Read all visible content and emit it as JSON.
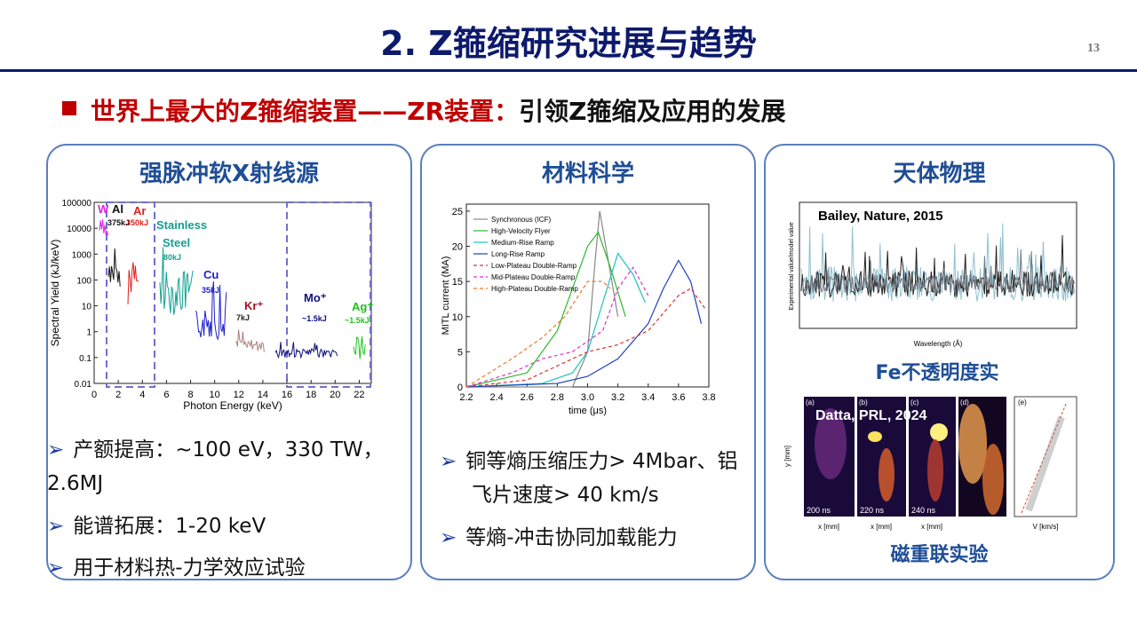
{
  "header": {
    "title": "2. Z箍缩研究进展与趋势",
    "page": "13"
  },
  "subtitle": {
    "red": "世界上最大的Z箍缩装置——ZR装置：",
    "black": "引领Z箍缩及应用的发展"
  },
  "panels": [
    {
      "title": "强脉冲软X射线源",
      "figure": {
        "ylabel": "Spectral Yield (kJ/keV)",
        "xlabel": "Photon Energy (keV)",
        "log": true,
        "xlim": [
          0,
          23
        ],
        "xticks": [
          0,
          2,
          4,
          6,
          8,
          10,
          12,
          14,
          16,
          18,
          20,
          22
        ],
        "ylim": [
          0.01,
          100000
        ],
        "yticks": [
          100000,
          10000,
          1000,
          100,
          10,
          1,
          0.1,
          0.01
        ],
        "annotations": [
          "W",
          "Al",
          "375kJ",
          "Ar",
          "350kJ",
          "Stainless",
          "Steel",
          "80kJ",
          "Cu",
          "35kJ",
          "Kr⁺",
          "7kJ",
          "Mo⁺",
          "~1.5kJ",
          "Ag⁺",
          "~1.5kJ"
        ]
      },
      "bullets": [
        "产额提高：~100 eV，330 TW，2.6MJ",
        "能谱拓展：1-20 keV",
        "用于材料热-力学效应试验"
      ]
    },
    {
      "title": "材料科学",
      "figure": {
        "type": "line",
        "xlabel": "time (μs)",
        "ylabel": "MITL current (MA)",
        "xlim": [
          2.2,
          3.8
        ],
        "xticks": [
          2.2,
          2.4,
          2.6,
          2.8,
          3.0,
          3.2,
          3.4,
          3.6,
          3.8
        ],
        "ylim": [
          0,
          26
        ],
        "yticks": [
          0,
          5,
          10,
          15,
          20,
          25
        ],
        "series": [
          {
            "name": "Synchronous (ICF)",
            "color": "#888888",
            "dash": false,
            "x": [
              2.2,
              2.9,
              3.0,
              3.05,
              3.08,
              3.12,
              3.2
            ],
            "values": [
              0,
              0,
              5,
              18,
              25,
              20,
              10
            ]
          },
          {
            "name": "High-Velocity Flyer",
            "color": "#2db82d",
            "dash": false,
            "x": [
              2.2,
              2.6,
              2.8,
              2.9,
              3.0,
              3.07,
              3.15,
              3.25
            ],
            "values": [
              0,
              2,
              8,
              14,
              20,
              22,
              17,
              10
            ]
          },
          {
            "name": "Medium-Rise Ramp",
            "color": "#20c0c0",
            "dash": false,
            "x": [
              2.2,
              2.7,
              2.9,
              3.0,
              3.1,
              3.2,
              3.3,
              3.38
            ],
            "values": [
              0,
              0.5,
              2,
              5,
              12,
              19,
              16,
              12
            ]
          },
          {
            "name": "Long-Rise Ramp",
            "color": "#2040c0",
            "dash": false,
            "x": [
              2.2,
              2.8,
              3.0,
              3.2,
              3.4,
              3.5,
              3.6,
              3.68,
              3.75
            ],
            "values": [
              0,
              0.5,
              1.5,
              4,
              9,
              14,
              18,
              15,
              9
            ]
          },
          {
            "name": "Low-Plateau Double-Ramp",
            "color": "#e03030",
            "dash": true,
            "x": [
              2.2,
              2.6,
              2.8,
              3.0,
              3.2,
              3.4,
              3.6,
              3.68,
              3.78
            ],
            "values": [
              0,
              1,
              3,
              5,
              6,
              8,
              13,
              14,
              11
            ]
          },
          {
            "name": "Mid-Plateau Double-Ramp",
            "color": "#e030d0",
            "dash": true,
            "x": [
              2.2,
              2.5,
              2.7,
              2.9,
              3.1,
              3.2,
              3.3,
              3.4
            ],
            "values": [
              0,
              2,
              4,
              5,
              8,
              14,
              17,
              13
            ]
          },
          {
            "name": "High-Plateau Double-Ramp",
            "color": "#f07820",
            "dash": true,
            "x": [
              2.2,
              2.5,
              2.7,
              2.85,
              3.0,
              3.1,
              3.15
            ],
            "values": [
              0,
              4,
              7,
              10,
              15,
              15,
              14
            ]
          }
        ]
      },
      "bullets": [
        "铜等熵压缩压力> 4Mbar、铝飞片速度> 40 km/s",
        "等熵-冲击协同加载能力"
      ]
    },
    {
      "title": "天体物理",
      "figure1": {
        "note": "Bailey, Nature, 2015",
        "xlabel": "Wavelength (Å)",
        "xticks": [
          8,
          9,
          10,
          11,
          12
        ],
        "ylabel": "Experimental value/model value"
      },
      "caption1": "Fe不透明度实验",
      "figure2": {
        "note": "Datta, PRL, 2024",
        "panels": [
          "(a)",
          "(b)",
          "(c)",
          "(d)",
          "(e)"
        ],
        "times": [
          "200 ns",
          "220 ns",
          "240 ns"
        ],
        "ylabel": "y [mm]",
        "xlabel": "x [mm]",
        "vlabel": "V [km/s]"
      },
      "caption2": "磁重联实验"
    }
  ]
}
